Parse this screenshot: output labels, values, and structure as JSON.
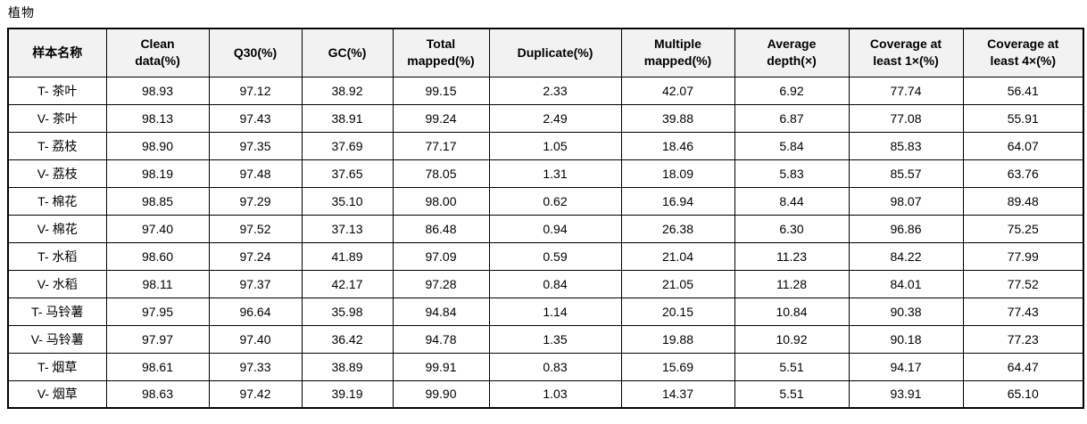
{
  "page": {
    "title": "植物"
  },
  "table": {
    "columns": [
      "样本名称",
      "Clean\ndata(%)",
      "Q30(%)",
      "GC(%)",
      "Total\nmapped(%)",
      "Duplicate(%)",
      "Multiple\nmapped(%)",
      "Average\ndepth(×)",
      "Coverage at\nleast 1×(%)",
      "Coverage at\nleast 4×(%)"
    ],
    "rows": [
      [
        "T- 茶叶",
        "98.93",
        "97.12",
        "38.92",
        "99.15",
        "2.33",
        "42.07",
        "6.92",
        "77.74",
        "56.41"
      ],
      [
        "V- 茶叶",
        "98.13",
        "97.43",
        "38.91",
        "99.24",
        "2.49",
        "39.88",
        "6.87",
        "77.08",
        "55.91"
      ],
      [
        "T- 荔枝",
        "98.90",
        "97.35",
        "37.69",
        "77.17",
        "1.05",
        "18.46",
        "5.84",
        "85.83",
        "64.07"
      ],
      [
        "V- 荔枝",
        "98.19",
        "97.48",
        "37.65",
        "78.05",
        "1.31",
        "18.09",
        "5.83",
        "85.57",
        "63.76"
      ],
      [
        "T- 棉花",
        "98.85",
        "97.29",
        "35.10",
        "98.00",
        "0.62",
        "16.94",
        "8.44",
        "98.07",
        "89.48"
      ],
      [
        "V- 棉花",
        "97.40",
        "97.52",
        "37.13",
        "86.48",
        "0.94",
        "26.38",
        "6.30",
        "96.86",
        "75.25"
      ],
      [
        "T- 水稻",
        "98.60",
        "97.24",
        "41.89",
        "97.09",
        "0.59",
        "21.04",
        "11.23",
        "84.22",
        "77.99"
      ],
      [
        "V- 水稻",
        "98.11",
        "97.37",
        "42.17",
        "97.28",
        "0.84",
        "21.05",
        "11.28",
        "84.01",
        "77.52"
      ],
      [
        "T- 马铃薯",
        "97.95",
        "96.64",
        "35.98",
        "94.84",
        "1.14",
        "20.15",
        "10.84",
        "90.38",
        "77.43"
      ],
      [
        "V- 马铃薯",
        "97.97",
        "97.40",
        "36.42",
        "94.78",
        "1.35",
        "19.88",
        "10.92",
        "90.18",
        "77.23"
      ],
      [
        "T- 烟草",
        "98.61",
        "97.33",
        "38.89",
        "99.91",
        "0.83",
        "15.69",
        "5.51",
        "94.17",
        "64.47"
      ],
      [
        "V- 烟草",
        "98.63",
        "97.42",
        "39.19",
        "99.90",
        "1.03",
        "14.37",
        "5.51",
        "93.91",
        "65.10"
      ]
    ]
  },
  "colors": {
    "header_bg": "#f2f2f2",
    "border": "#000000",
    "text": "#000000",
    "page_bg": "#ffffff"
  }
}
